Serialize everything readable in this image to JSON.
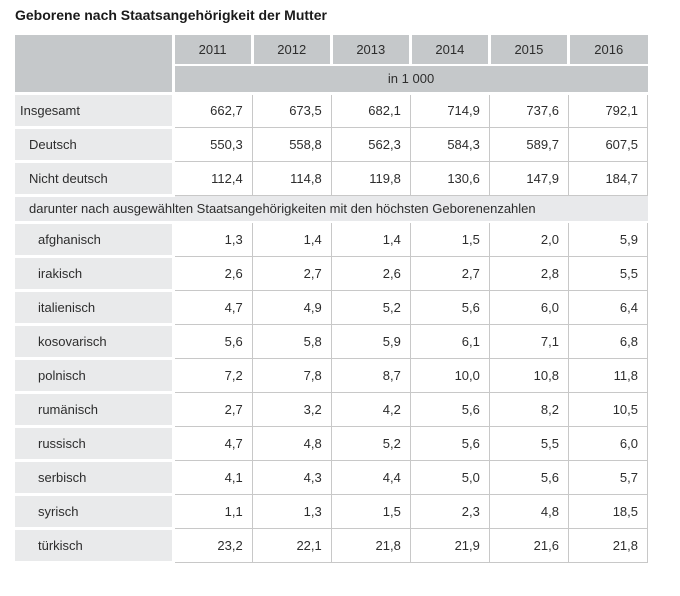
{
  "title": "Geborene nach Staatsangehörigkeit der Mutter",
  "chart_data": {
    "type": "table",
    "title": "Geborene nach Staatsangehörigkeit der Mutter",
    "unit": "in 1 000",
    "columns": [
      "2011",
      "2012",
      "2013",
      "2014",
      "2015",
      "2016"
    ],
    "rows": [
      {
        "type": "data",
        "label": "Insgesamt",
        "indent": 0,
        "values": [
          "662,7",
          "673,5",
          "682,1",
          "714,9",
          "737,6",
          "792,1"
        ]
      },
      {
        "type": "data",
        "label": "Deutsch",
        "indent": 1,
        "values": [
          "550,3",
          "558,8",
          "562,3",
          "584,3",
          "589,7",
          "607,5"
        ]
      },
      {
        "type": "data",
        "label": "Nicht deutsch",
        "indent": 1,
        "values": [
          "112,4",
          "114,8",
          "119,8",
          "130,6",
          "147,9",
          "184,7"
        ]
      },
      {
        "type": "section",
        "label": "darunter nach ausgewählten Staatsangehörigkeiten mit den höchsten Geborenenzahlen"
      },
      {
        "type": "data",
        "label": "afghanisch",
        "indent": 2,
        "values": [
          "1,3",
          "1,4",
          "1,4",
          "1,5",
          "2,0",
          "5,9"
        ]
      },
      {
        "type": "data",
        "label": "irakisch",
        "indent": 2,
        "values": [
          "2,6",
          "2,7",
          "2,6",
          "2,7",
          "2,8",
          "5,5"
        ]
      },
      {
        "type": "data",
        "label": "italienisch",
        "indent": 2,
        "values": [
          "4,7",
          "4,9",
          "5,2",
          "5,6",
          "6,0",
          "6,4"
        ]
      },
      {
        "type": "data",
        "label": "kosovarisch",
        "indent": 2,
        "values": [
          "5,6",
          "5,8",
          "5,9",
          "6,1",
          "7,1",
          "6,8"
        ]
      },
      {
        "type": "data",
        "label": "polnisch",
        "indent": 2,
        "values": [
          "7,2",
          "7,8",
          "8,7",
          "10,0",
          "10,8",
          "11,8"
        ]
      },
      {
        "type": "data",
        "label": "rumänisch",
        "indent": 2,
        "values": [
          "2,7",
          "3,2",
          "4,2",
          "5,6",
          "8,2",
          "10,5"
        ]
      },
      {
        "type": "data",
        "label": "russisch",
        "indent": 2,
        "values": [
          "4,7",
          "4,8",
          "5,2",
          "5,6",
          "5,5",
          "6,0"
        ]
      },
      {
        "type": "data",
        "label": "serbisch",
        "indent": 2,
        "values": [
          "4,1",
          "4,3",
          "4,4",
          "5,0",
          "5,6",
          "5,7"
        ]
      },
      {
        "type": "data",
        "label": "syrisch",
        "indent": 2,
        "values": [
          "1,1",
          "1,3",
          "1,5",
          "2,3",
          "4,8",
          "18,5"
        ]
      },
      {
        "type": "data",
        "label": "türkisch",
        "indent": 2,
        "values": [
          "23,2",
          "22,1",
          "21,8",
          "21,9",
          "21,6",
          "21,8"
        ]
      }
    ]
  },
  "colors": {
    "header_bg": "#c5c8ca",
    "label_bg": "#e9eaeb",
    "section_bg": "#e8e9eb",
    "grid": "#c8c8c8",
    "text": "#2d2d2d",
    "title_text": "#1a1a1a"
  }
}
